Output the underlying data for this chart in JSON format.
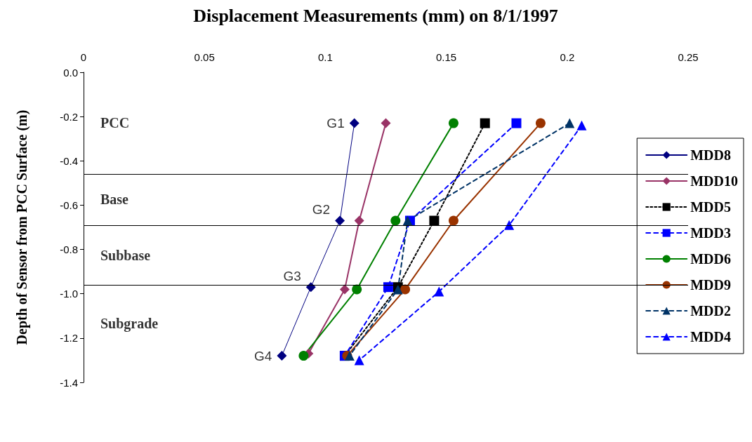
{
  "chart_data": {
    "type": "line",
    "title": "Displacement Measurements (mm) on 8/1/1997",
    "ylabel": "Depth of Sensor from PCC Surface (m)",
    "xlim": [
      0,
      0.25
    ],
    "xticks": [
      0,
      0.05,
      0.1,
      0.15,
      0.2,
      0.25
    ],
    "ylim": [
      -1.4,
      0
    ],
    "yticks": [
      {
        "value": -1.4,
        "label": "-1.4"
      },
      {
        "value": -1.2,
        "label": "-1.2"
      },
      {
        "value": -1,
        "label": "-1.0"
      },
      {
        "value": -0.8,
        "label": "-0.8"
      },
      {
        "value": -0.6,
        "label": "-0.6"
      },
      {
        "value": -0.4,
        "label": "-0.4"
      },
      {
        "value": -0.2,
        "label": "-0.2"
      },
      {
        "value": 0,
        "label": "0.0"
      }
    ],
    "grid": false,
    "legend": "right",
    "series": [
      {
        "name": "MDD8",
        "color": "#000080",
        "marker": "diamond",
        "line_style": "solid",
        "x": [
          0.112,
          0.106,
          0.094,
          0.082
        ],
        "values": [
          -0.23,
          -0.67,
          -0.97,
          -1.28
        ]
      },
      {
        "name": "MDD10",
        "color": "#993366",
        "marker": "diamond",
        "line_style": "solid",
        "x": [
          0.125,
          0.114,
          0.108,
          0.093
        ],
        "values": [
          -0.23,
          -0.67,
          -0.98,
          -1.27
        ]
      },
      {
        "name": "MDD5",
        "color": "#000000",
        "marker": "square",
        "line_style": "dotted",
        "x": [
          0.166,
          0.145,
          0.13,
          0.108
        ],
        "values": [
          -0.23,
          -0.67,
          -0.97,
          -1.28
        ]
      },
      {
        "name": "MDD3",
        "color": "#0000ff",
        "marker": "square",
        "line_style": "dashed",
        "x": [
          0.179,
          0.135,
          0.126,
          0.108
        ],
        "values": [
          -0.23,
          -0.67,
          -0.97,
          -1.28
        ]
      },
      {
        "name": "MDD6",
        "color": "#008000",
        "marker": "circle",
        "line_style": "solid",
        "x": [
          0.153,
          0.129,
          0.113,
          0.091
        ],
        "values": [
          -0.23,
          -0.67,
          -0.98,
          -1.28
        ]
      },
      {
        "name": "MDD9",
        "color": "#993300",
        "marker": "circle",
        "line_style": "solid",
        "x": [
          0.189,
          0.153,
          0.133,
          0.109
        ],
        "values": [
          -0.23,
          -0.67,
          -0.98,
          -1.28
        ]
      },
      {
        "name": "MDD2",
        "color": "#003366",
        "marker": "triangle",
        "line_style": "dashed",
        "x": [
          0.201,
          0.134,
          0.13,
          0.11
        ],
        "values": [
          -0.23,
          -0.67,
          -0.98,
          -1.28
        ]
      },
      {
        "name": "MDD4",
        "color": "#0000ff",
        "marker": "triangle",
        "line_style": "dashed",
        "x": [
          0.206,
          0.176,
          0.147,
          0.114
        ],
        "values": [
          -0.24,
          -0.69,
          -0.99,
          -1.3
        ]
      }
    ],
    "ref_lines": [
      {
        "axis": "y",
        "value": -0.455,
        "color": "#000000"
      },
      {
        "axis": "y",
        "value": -0.69,
        "color": "#000000"
      },
      {
        "axis": "y",
        "value": -0.965,
        "color": "#000000"
      }
    ],
    "annotations": [
      "PCC",
      "Base",
      "Subbase",
      "Subgrade",
      "G1",
      "G2",
      "G3",
      "G4"
    ]
  }
}
